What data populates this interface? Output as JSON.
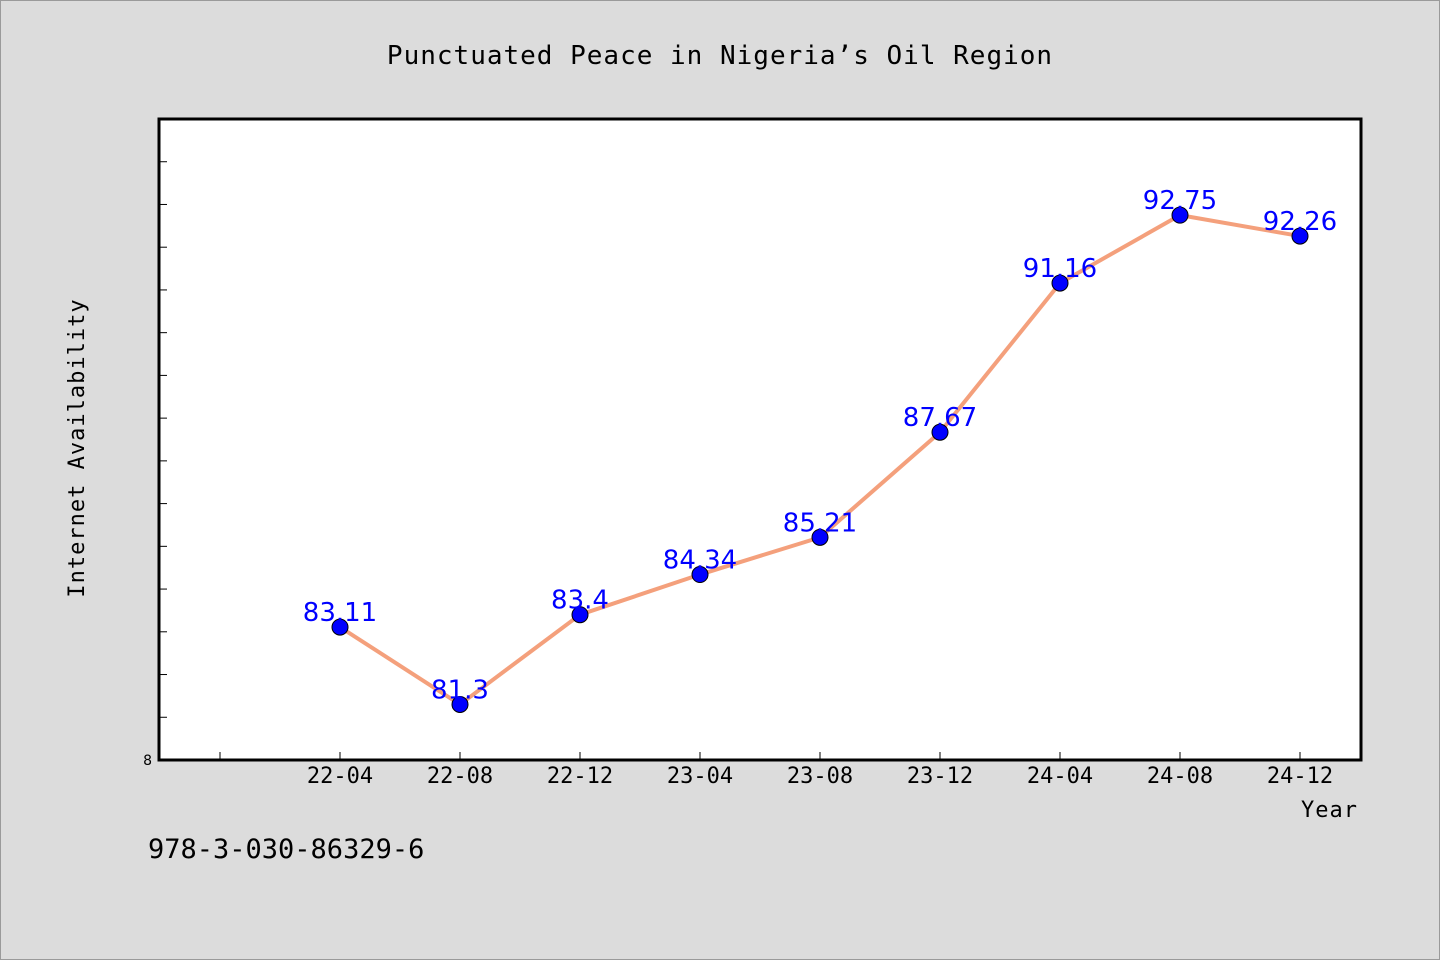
{
  "chart_data": {
    "type": "line",
    "title": "Punctuated Peace in Nigeria’s Oil Region",
    "xlabel": "Year",
    "ylabel": "Internet Availability",
    "categories": [
      "22-04",
      "22-08",
      "22-12",
      "23-04",
      "23-08",
      "23-12",
      "24-04",
      "24-08",
      "24-12"
    ],
    "series": [
      {
        "values": [
          83.11,
          81.3,
          83.4,
          84.34,
          85.21,
          87.67,
          91.16,
          92.75,
          92.26
        ],
        "color": "#f4a07c",
        "marker_color": "#0000ff"
      }
    ],
    "ylim": [
      80,
      95
    ],
    "y_tick_label": "8",
    "data_labels": [
      "83.11",
      "81.3",
      "83.4",
      "84.34",
      "85.21",
      "87.67",
      "91.16",
      "92.75",
      "92.26"
    ],
    "grid": false,
    "background": "#dcdcdc",
    "plot_background": "#ffffff"
  },
  "footer": {
    "code": "978-3-030-86329-6"
  }
}
